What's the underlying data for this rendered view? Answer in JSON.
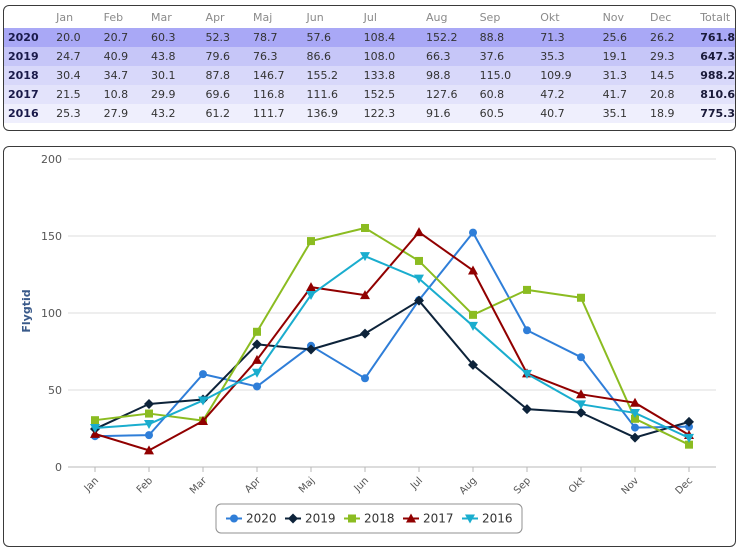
{
  "table": {
    "headers": [
      "",
      "Jan",
      "Feb",
      "Mar",
      "Apr",
      "Maj",
      "Jun",
      "Jul",
      "Aug",
      "Sep",
      "Okt",
      "Nov",
      "Dec",
      "Totalt"
    ],
    "rows": [
      {
        "year": "2020",
        "bg": "#a9a8f6",
        "values": [
          "20.0",
          "20.7",
          "60.3",
          "52.3",
          "78.7",
          "57.6",
          "108.4",
          "152.2",
          "88.8",
          "71.3",
          "25.6",
          "26.2"
        ],
        "total": "761.8"
      },
      {
        "year": "2019",
        "bg": "#c6c6f8",
        "values": [
          "24.7",
          "40.9",
          "43.8",
          "79.6",
          "76.3",
          "86.6",
          "108.0",
          "66.3",
          "37.6",
          "35.3",
          "19.1",
          "29.3"
        ],
        "total": "647.3"
      },
      {
        "year": "2018",
        "bg": "#d8d8fa",
        "values": [
          "30.4",
          "34.7",
          "30.1",
          "87.8",
          "146.7",
          "155.2",
          "133.8",
          "98.8",
          "115.0",
          "109.9",
          "31.3",
          "14.5"
        ],
        "total": "988.2"
      },
      {
        "year": "2017",
        "bg": "#e3e3fb",
        "values": [
          "21.5",
          "10.8",
          "29.9",
          "69.6",
          "116.8",
          "111.6",
          "152.5",
          "127.6",
          "60.8",
          "47.2",
          "41.7",
          "20.8"
        ],
        "total": "810.6"
      },
      {
        "year": "2016",
        "bg": "#efeffd",
        "values": [
          "25.3",
          "27.9",
          "43.2",
          "61.2",
          "111.7",
          "136.9",
          "122.3",
          "91.6",
          "60.5",
          "40.7",
          "35.1",
          "18.9"
        ],
        "total": "775.3"
      }
    ]
  },
  "chart_data": {
    "type": "line",
    "title": "",
    "xlabel": "",
    "ylabel": "Flygtid",
    "ylim": [
      0,
      200
    ],
    "yticks": [
      "0",
      "50",
      "100",
      "150",
      "200"
    ],
    "grid": true,
    "legend_position": "bottom",
    "categories": [
      "Jan",
      "Feb",
      "Mar",
      "Apr",
      "Maj",
      "Jun",
      "Jul",
      "Aug",
      "Sep",
      "Okt",
      "Nov",
      "Dec"
    ],
    "series": [
      {
        "name": "2020",
        "color": "#2f7ed8",
        "marker": "circle",
        "values": [
          20.0,
          20.7,
          60.3,
          52.3,
          78.7,
          57.6,
          108.4,
          152.2,
          88.8,
          71.3,
          25.6,
          26.2
        ]
      },
      {
        "name": "2019",
        "color": "#0d233a",
        "marker": "diamond",
        "values": [
          24.7,
          40.9,
          43.8,
          79.6,
          76.3,
          86.6,
          108.0,
          66.3,
          37.6,
          35.3,
          19.1,
          29.3
        ]
      },
      {
        "name": "2018",
        "color": "#8bbc21",
        "marker": "square",
        "values": [
          30.4,
          34.7,
          30.1,
          87.8,
          146.7,
          155.2,
          133.8,
          98.8,
          115.0,
          109.9,
          31.3,
          14.5
        ]
      },
      {
        "name": "2017",
        "color": "#910000",
        "marker": "triangle",
        "values": [
          21.5,
          10.8,
          29.9,
          69.6,
          116.8,
          111.6,
          152.5,
          127.6,
          60.8,
          47.2,
          41.7,
          20.8
        ]
      },
      {
        "name": "2016",
        "color": "#1aadce",
        "marker": "triangle-down",
        "values": [
          25.3,
          27.9,
          43.2,
          61.2,
          111.7,
          136.9,
          122.3,
          91.6,
          60.5,
          40.7,
          35.1,
          18.9
        ]
      }
    ]
  }
}
